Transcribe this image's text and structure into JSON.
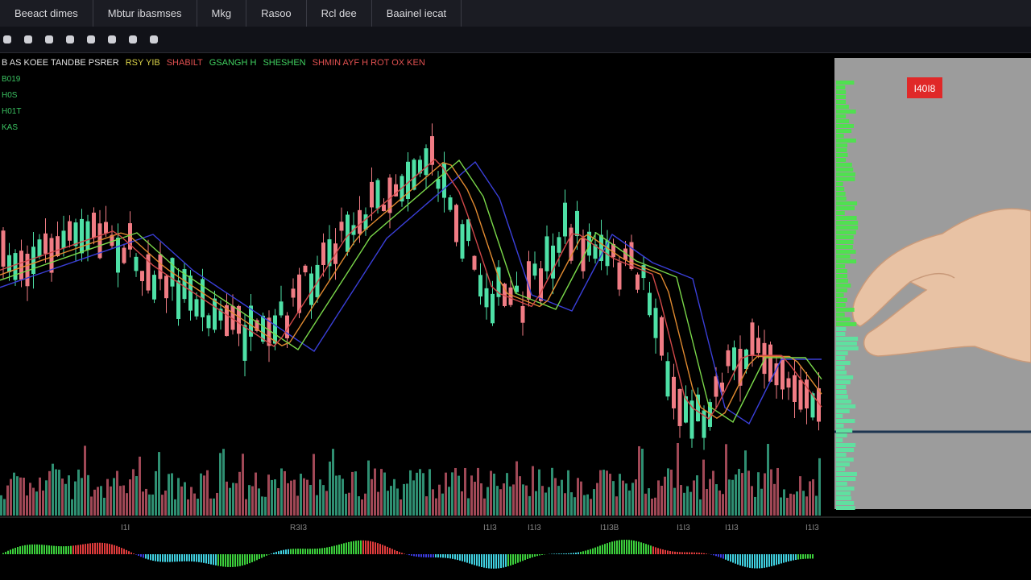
{
  "tabs": [
    "Beeact dimes",
    "Mbtur ibasmses",
    "Mkg",
    "Rasoo",
    "Rcl dee",
    "Baainel iecat"
  ],
  "legend": [
    "B AS KOEE TANDBE PSRER",
    "RSY YIB",
    "SHABILT",
    "GSANGH H",
    "SHESHEN",
    "SHMIN AYF H ROT OX KEN"
  ],
  "indicators": [
    "B019",
    "H0S",
    "H01T",
    "KAS"
  ],
  "price_tag": "I40I8",
  "pane_labels": [
    "I1I",
    "R3I3",
    "I1I3",
    "I1I3",
    "I1I3B",
    "I1I3",
    "I1I3",
    "I1I3"
  ]
}
